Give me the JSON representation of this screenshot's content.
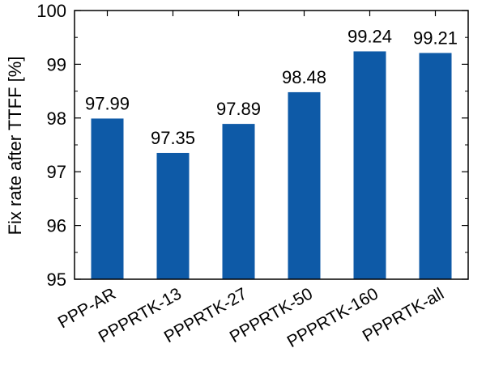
{
  "chart_data": {
    "type": "bar",
    "title": "",
    "xlabel": "",
    "ylabel": "Fix rate after TTFF [%]",
    "categories": [
      "PPP-AR",
      "PPPRTK-13",
      "PPPRTK-27",
      "PPPRTK-50",
      "PPPRTK-160",
      "PPPRTK-all"
    ],
    "values": [
      97.99,
      97.35,
      97.89,
      98.48,
      99.24,
      99.21
    ],
    "data_labels": [
      "97.99",
      "97.35",
      "97.89",
      "98.48",
      "99.24",
      "99.21"
    ],
    "ylim": [
      95,
      100
    ],
    "yticks": [
      95,
      96,
      97,
      98,
      99,
      100
    ],
    "ytick_labels": [
      "95",
      "96",
      "97",
      "98",
      "99",
      "100"
    ],
    "bar_color": "#0e5aa7",
    "grid": false,
    "legend": "none"
  }
}
